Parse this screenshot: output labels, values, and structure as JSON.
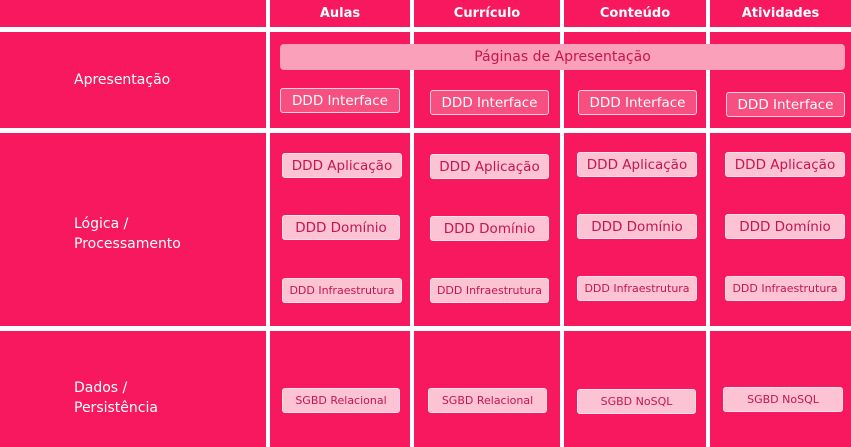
{
  "columns": [
    "Aulas",
    "Currículo",
    "Conteúdo",
    "Atividades"
  ],
  "rows": [
    {
      "label": "Apresentação"
    },
    {
      "label": "Lógica /\nProcessamento"
    },
    {
      "label": "Dados /\nPersistência"
    }
  ],
  "banner": "Páginas de Apresentação",
  "cells": [
    {
      "interface": "DDD Interface",
      "aplicacao": "DDD Aplicação",
      "dominio": "DDD Domínio",
      "infra": "DDD Infraestrutura",
      "db": "SGBD Relacional"
    },
    {
      "interface": "DDD Interface",
      "aplicacao": "DDD Aplicação",
      "dominio": "DDD Domínio",
      "infra": "DDD Infraestrutura",
      "db": "SGBD Relacional"
    },
    {
      "interface": "DDD Interface",
      "aplicacao": "DDD Aplicação",
      "dominio": "DDD Domínio",
      "infra": "DDD Infraestrutura",
      "db": "SGBD NoSQL"
    },
    {
      "interface": "DDD Interface",
      "aplicacao": "DDD Aplicação",
      "dominio": "DDD Domínio",
      "infra": "DDD Infraestrutura",
      "db": "SGBD NoSQL"
    }
  ]
}
